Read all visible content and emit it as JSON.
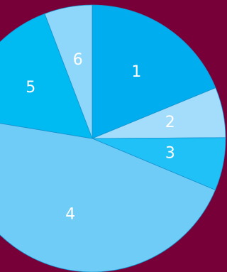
{
  "chart_data": {
    "type": "pie",
    "start_angle_deg": 0,
    "direction": "clockwise",
    "slices": [
      {
        "label": "1",
        "value": 18.8,
        "color": "#00adef"
      },
      {
        "label": "2",
        "value": 6.1,
        "color": "#a3ddfb"
      },
      {
        "label": "3",
        "value": 6.4,
        "color": "#20c1f7"
      },
      {
        "label": "4",
        "value": 46.3,
        "color": "#6fccf6"
      },
      {
        "label": "5",
        "value": 16.6,
        "color": "#00baf2"
      },
      {
        "label": "6",
        "value": 5.8,
        "color": "#8fd7fa"
      }
    ]
  }
}
